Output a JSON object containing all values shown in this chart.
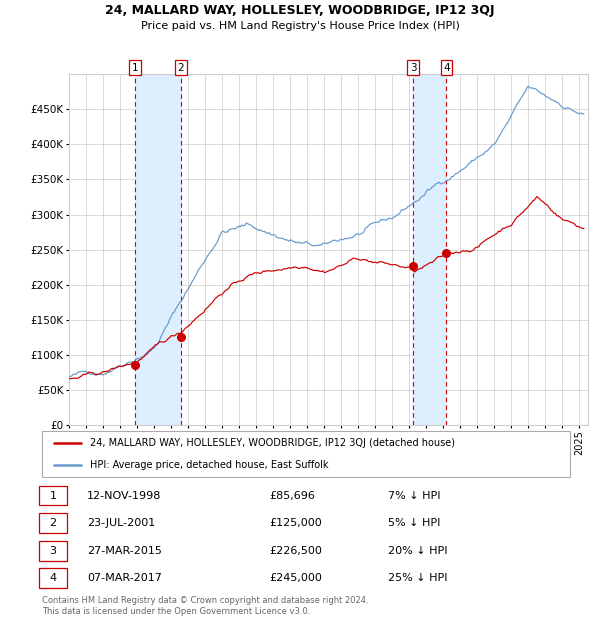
{
  "title1": "24, MALLARD WAY, HOLLESLEY, WOODBRIDGE, IP12 3QJ",
  "title2": "Price paid vs. HM Land Registry's House Price Index (HPI)",
  "red_line_label": "24, MALLARD WAY, HOLLESLEY, WOODBRIDGE, IP12 3QJ (detached house)",
  "blue_line_label": "HPI: Average price, detached house, East Suffolk",
  "footer": "Contains HM Land Registry data © Crown copyright and database right 2024.\nThis data is licensed under the Open Government Licence v3.0.",
  "transactions": [
    {
      "num": 1,
      "date": "12-NOV-1998",
      "price": 85696,
      "pct": "7%",
      "x_year": 1998.87
    },
    {
      "num": 2,
      "date": "23-JUL-2001",
      "price": 125000,
      "pct": "5%",
      "x_year": 2001.56
    },
    {
      "num": 3,
      "date": "27-MAR-2015",
      "price": 226500,
      "pct": "20%",
      "x_year": 2015.23
    },
    {
      "num": 4,
      "date": "07-MAR-2017",
      "price": 245000,
      "pct": "25%",
      "x_year": 2017.18
    }
  ],
  "xlim": [
    1995.0,
    2025.5
  ],
  "ylim": [
    0,
    500000
  ],
  "yticks": [
    0,
    50000,
    100000,
    150000,
    200000,
    250000,
    300000,
    350000,
    400000,
    450000
  ],
  "ytick_labels": [
    "£0",
    "£50K",
    "£100K",
    "£150K",
    "£200K",
    "£250K",
    "£300K",
    "£350K",
    "£400K",
    "£450K"
  ],
  "xticks": [
    1995,
    1996,
    1997,
    1998,
    1999,
    2000,
    2001,
    2002,
    2003,
    2004,
    2005,
    2006,
    2007,
    2008,
    2009,
    2010,
    2011,
    2012,
    2013,
    2014,
    2015,
    2016,
    2017,
    2018,
    2019,
    2020,
    2021,
    2022,
    2023,
    2024,
    2025
  ],
  "red_color": "#cc0000",
  "blue_color": "#6699cc",
  "grid_color": "#cccccc",
  "shading_color": "#ddeeff",
  "vline_color": "#cc0000",
  "label_box_color": "#ffffff",
  "label_box_edge": "#cc0000",
  "legend_border_color": "#aaaaaa",
  "text_color": "#333333",
  "footer_color": "#666666"
}
